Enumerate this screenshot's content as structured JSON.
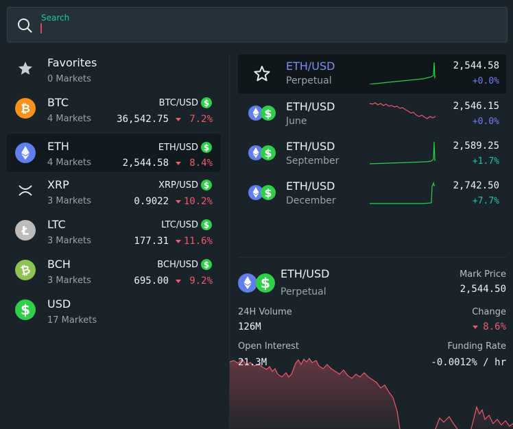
{
  "search": {
    "label": "Search",
    "value": "",
    "icon": "search-icon"
  },
  "assets": [
    {
      "name": "Favorites",
      "sub": "0 Markets",
      "icon": "star-icon"
    },
    {
      "name": "BTC",
      "sub": "4 Markets",
      "pair": "BTC/USD",
      "price": "36,542.75",
      "change": "7.2%",
      "icon": "bitcoin-icon",
      "color": "#f7931a"
    },
    {
      "name": "ETH",
      "sub": "4 Markets",
      "pair": "ETH/USD",
      "price": "2,544.58",
      "change": "8.4%",
      "icon": "ethereum-icon",
      "color": "#627eea",
      "selected": true
    },
    {
      "name": "XRP",
      "sub": "3 Markets",
      "pair": "XRP/USD",
      "price": "0.9022",
      "change": "10.2%",
      "icon": "xrp-icon"
    },
    {
      "name": "LTC",
      "sub": "3 Markets",
      "pair": "LTC/USD",
      "price": "177.31",
      "change": "11.6%",
      "icon": "litecoin-icon",
      "color": "#bfbbbb"
    },
    {
      "name": "BCH",
      "sub": "3 Markets",
      "pair": "BCH/USD",
      "price": "695.00",
      "change": "9.2%",
      "icon": "bitcoin-cash-icon",
      "color": "#8dc351"
    },
    {
      "name": "USD",
      "sub": "17 Markets",
      "icon": "dollar-icon",
      "color": "#2fcf4a"
    }
  ],
  "markets": [
    {
      "name": "ETH/USD",
      "sub": "Perpetual",
      "price": "2,544.58",
      "change": "+0.0%",
      "icon": "star-icon",
      "selected": true
    },
    {
      "name": "ETH/USD",
      "sub": "June",
      "price": "2,546.15",
      "change": "+0.0%",
      "icon": "eth-usd-pair-icon"
    },
    {
      "name": "ETH/USD",
      "sub": "September",
      "price": "2,589.25",
      "change": "+1.7%",
      "icon": "eth-usd-pair-icon"
    },
    {
      "name": "ETH/USD",
      "sub": "December",
      "price": "2,742.50",
      "change": "+7.7%",
      "icon": "eth-usd-pair-icon"
    }
  ],
  "detail": {
    "name": "ETH/USD",
    "sub": "Perpetual",
    "mark_price_label": "Mark Price",
    "mark_price": "2,544.50",
    "volume_label": "24H Volume",
    "volume": "126M",
    "change_label": "Change",
    "change": "8.6%",
    "open_interest_label": "Open Interest",
    "open_interest": "21.3M",
    "funding_label": "Funding Rate",
    "funding": "-0.0012% / hr"
  },
  "colors": {
    "accent": "#1fc6a4",
    "negative": "#ef5a6f",
    "positive": "#1fc6a4",
    "selected_text": "#7e8cf3",
    "eth": "#627eea",
    "usd": "#2fcf4a"
  }
}
